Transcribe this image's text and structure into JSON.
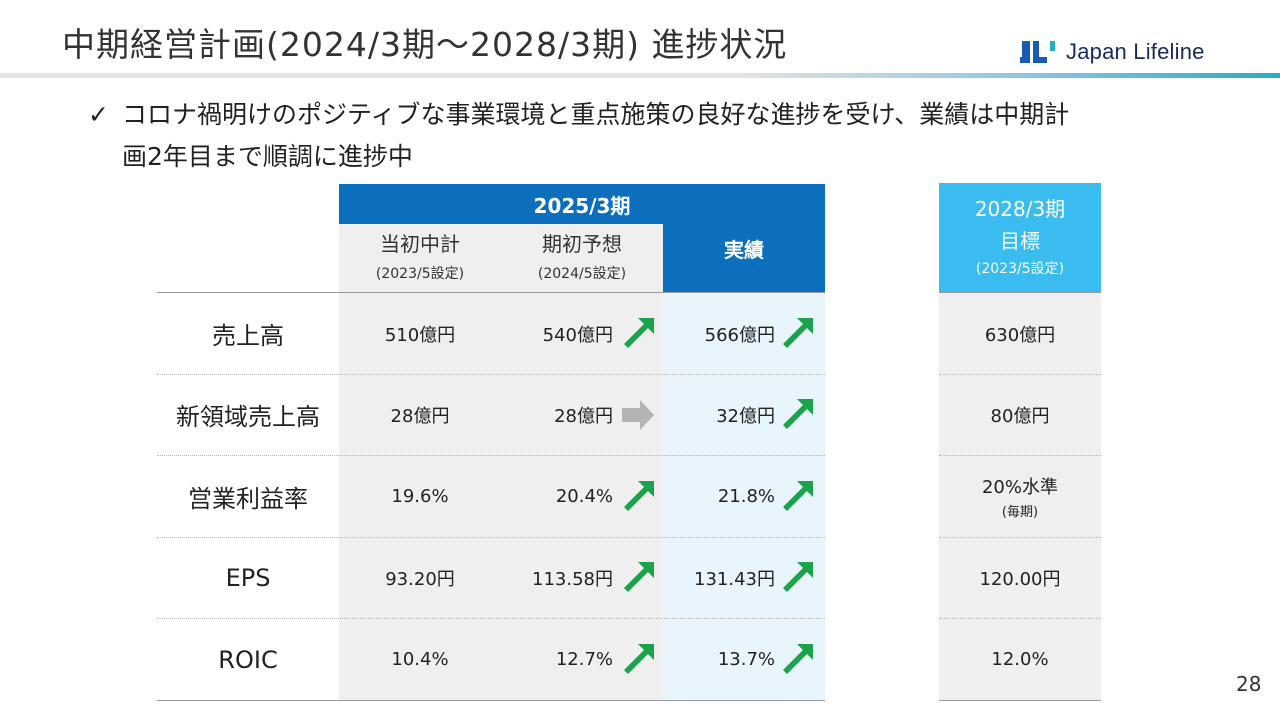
{
  "header": {
    "title": "中期経営計画(2024/3期～2028/3期) 進捗状況",
    "logo_text": "Japan Lifeline"
  },
  "bullet": {
    "check": "✓",
    "line1": "コロナ禍明けのポジティブな事業環境と重点施策の良好な進捗を受け、業績は中期計",
    "line2": "画2年目まで順調に進捗中"
  },
  "table": {
    "group_header": "2025/3期",
    "col_a": {
      "label": "当初中計",
      "sub": "(2023/5設定)"
    },
    "col_b": {
      "label": "期初予想",
      "sub": "(2024/5設定)"
    },
    "col_c": {
      "label": "実績"
    },
    "target": {
      "line1": "2028/3期",
      "line2": "目標",
      "sub": "(2023/5設定)"
    },
    "rows": [
      {
        "label": "売上高",
        "a": "510億円",
        "b": "540億円",
        "b_trend": "up",
        "c": "566億円",
        "c_trend": "up",
        "t": "630億円",
        "t_note": ""
      },
      {
        "label": "新領域売上高",
        "a": "28億円",
        "b": "28億円",
        "b_trend": "flat",
        "c": "32億円",
        "c_trend": "up",
        "t": "80億円",
        "t_note": ""
      },
      {
        "label": "営業利益率",
        "a": "19.6%",
        "b": "20.4%",
        "b_trend": "up",
        "c": "21.8%",
        "c_trend": "up",
        "t": "20%水準",
        "t_note": "(毎期)"
      },
      {
        "label": "EPS",
        "a": "93.20円",
        "b": "113.58円",
        "b_trend": "up",
        "c": "131.43円",
        "c_trend": "up",
        "t": "120.00円",
        "t_note": ""
      },
      {
        "label": "ROIC",
        "a": "10.4%",
        "b": "12.7%",
        "b_trend": "up",
        "c": "13.7%",
        "c_trend": "up",
        "t": "12.0%",
        "t_note": ""
      }
    ]
  },
  "colors": {
    "header_blue": "#0b6fbe",
    "target_blue": "#3bbcf0",
    "arrow_up_green": "#1aa34a",
    "arrow_flat_gray": "#b4b4b4"
  },
  "page_number": "28"
}
